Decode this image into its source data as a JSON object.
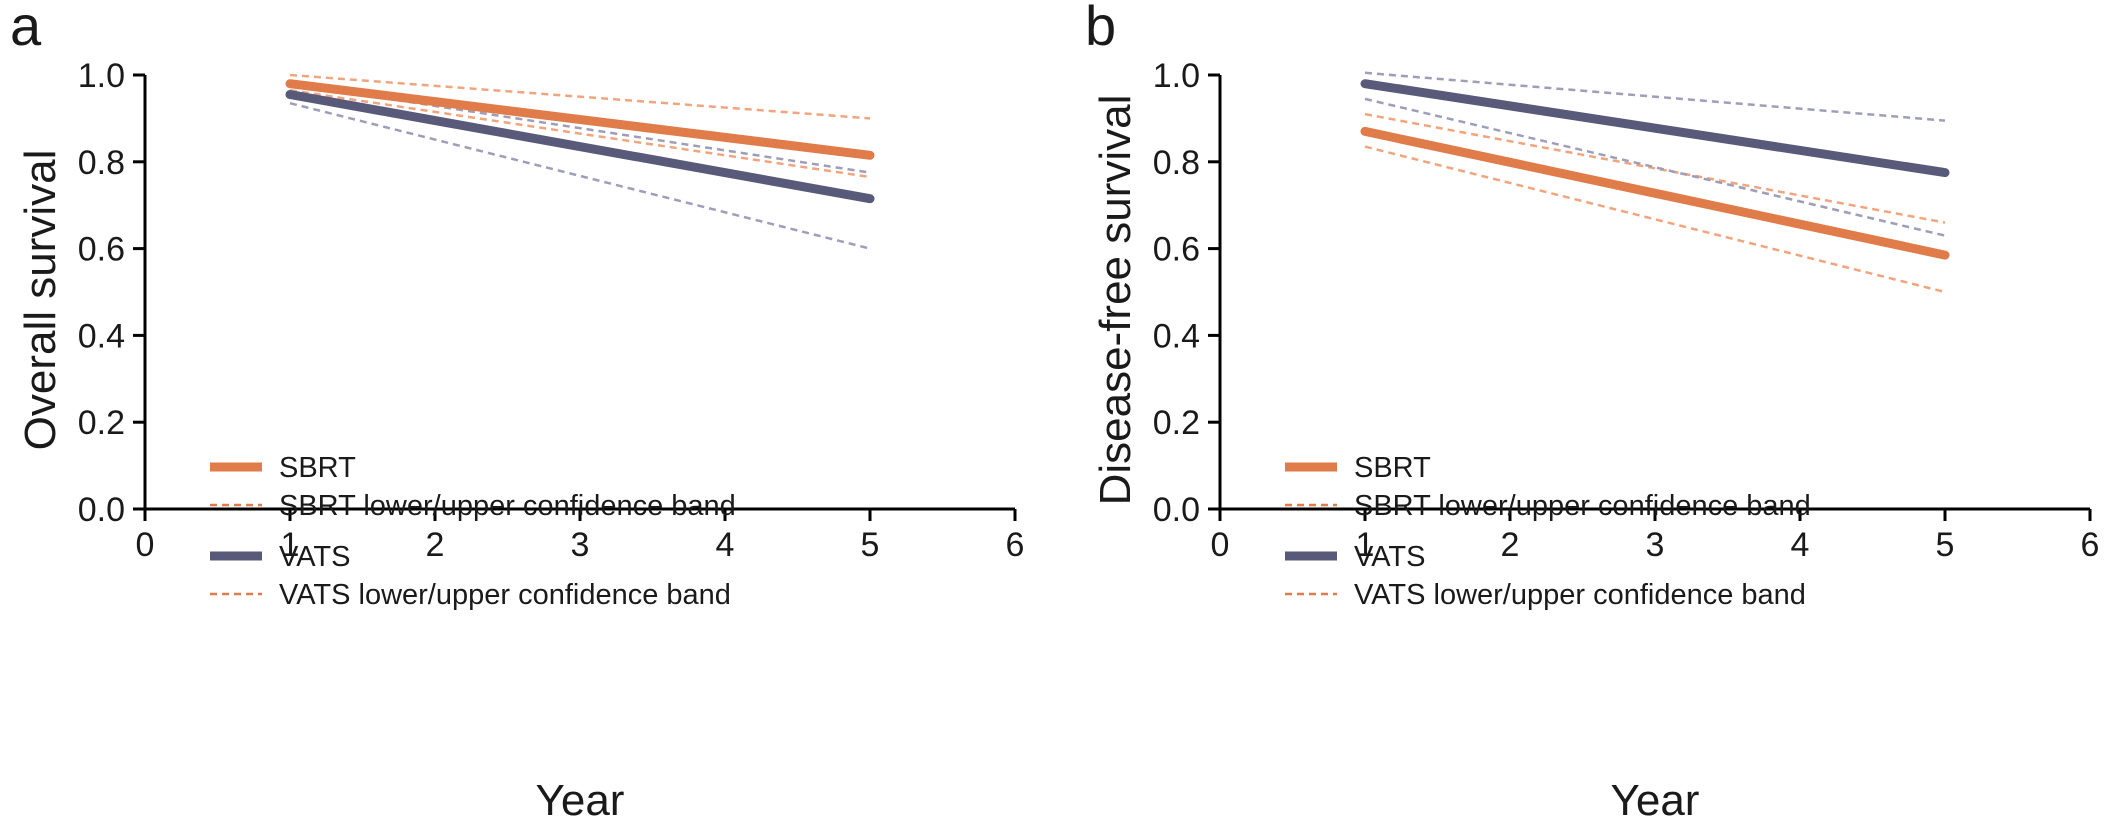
{
  "chart_data": [
    {
      "panel_letter": "a",
      "type": "line",
      "title": "",
      "xlabel": "Year",
      "ylabel": "Overall survival",
      "xlim": [
        0,
        6
      ],
      "ylim": [
        0.0,
        1.0
      ],
      "xticks": [
        "0",
        "1",
        "2",
        "3",
        "4",
        "5",
        "6"
      ],
      "yticks": [
        "0.0",
        "0.2",
        "0.4",
        "0.6",
        "0.8",
        "1.0"
      ],
      "grid": false,
      "legend_position": "lower-left",
      "legend": [
        {
          "label": "SBRT",
          "series": "SBRT",
          "style": "solid"
        },
        {
          "label": "SBRT lower/upper confidence band",
          "series": "SBRT",
          "style": "dashed"
        },
        {
          "label": "VATS",
          "series": "VATS",
          "style": "solid"
        },
        {
          "label": "VATS lower/upper confidence band",
          "series": "VATS",
          "style": "dashed"
        }
      ],
      "series": [
        {
          "name": "SBRT",
          "style": "solid",
          "color": "#e07b4a",
          "x": [
            1,
            5
          ],
          "y": [
            0.98,
            0.815
          ]
        },
        {
          "name": "SBRT lower/upper confidence band",
          "style": "dashed",
          "color": "#f0a57e",
          "x": [
            1,
            5
          ],
          "y": [
            1.0,
            0.9
          ]
        },
        {
          "name": "SBRT lower/upper confidence band",
          "style": "dashed",
          "color": "#f0a57e",
          "x": [
            1,
            5
          ],
          "y": [
            0.965,
            0.765
          ]
        },
        {
          "name": "VATS",
          "style": "solid",
          "color": "#59597a",
          "x": [
            1,
            5
          ],
          "y": [
            0.955,
            0.715
          ]
        },
        {
          "name": "VATS lower/upper confidence band",
          "style": "dashed",
          "color": "#9e9eb8",
          "x": [
            1,
            5
          ],
          "y": [
            0.98,
            0.775
          ]
        },
        {
          "name": "VATS lower/upper confidence band",
          "style": "dashed",
          "color": "#9e9eb8",
          "x": [
            1,
            5
          ],
          "y": [
            0.935,
            0.6
          ]
        }
      ]
    },
    {
      "panel_letter": "b",
      "type": "line",
      "title": "",
      "xlabel": "Year",
      "ylabel": "Disease-free survival",
      "xlim": [
        0,
        6
      ],
      "ylim": [
        0.0,
        1.0
      ],
      "xticks": [
        "0",
        "1",
        "2",
        "3",
        "4",
        "5",
        "6"
      ],
      "yticks": [
        "0.0",
        "0.2",
        "0.4",
        "0.6",
        "0.8",
        "1.0"
      ],
      "grid": false,
      "legend_position": "lower-left",
      "legend": [
        {
          "label": "SBRT",
          "series": "SBRT",
          "style": "solid"
        },
        {
          "label": "SBRT lower/upper confidence band",
          "series": "SBRT",
          "style": "dashed"
        },
        {
          "label": "VATS",
          "series": "VATS",
          "style": "solid"
        },
        {
          "label": "VATS lower/upper confidence band",
          "series": "VATS",
          "style": "dashed"
        }
      ],
      "series": [
        {
          "name": "SBRT",
          "style": "solid",
          "color": "#e07b4a",
          "x": [
            1,
            5
          ],
          "y": [
            0.87,
            0.585
          ]
        },
        {
          "name": "SBRT lower/upper confidence band",
          "style": "dashed",
          "color": "#f0a57e",
          "x": [
            1,
            5
          ],
          "y": [
            0.91,
            0.66
          ]
        },
        {
          "name": "SBRT lower/upper confidence band",
          "style": "dashed",
          "color": "#f0a57e",
          "x": [
            1,
            5
          ],
          "y": [
            0.835,
            0.5
          ]
        },
        {
          "name": "VATS",
          "style": "solid",
          "color": "#59597a",
          "x": [
            1,
            5
          ],
          "y": [
            0.98,
            0.775
          ]
        },
        {
          "name": "VATS lower/upper confidence band",
          "style": "dashed",
          "color": "#9e9eb8",
          "x": [
            1,
            5
          ],
          "y": [
            1.005,
            0.895
          ]
        },
        {
          "name": "VATS lower/upper confidence band",
          "style": "dashed",
          "color": "#9e9eb8",
          "x": [
            1,
            5
          ],
          "y": [
            0.945,
            0.63
          ]
        }
      ]
    }
  ]
}
